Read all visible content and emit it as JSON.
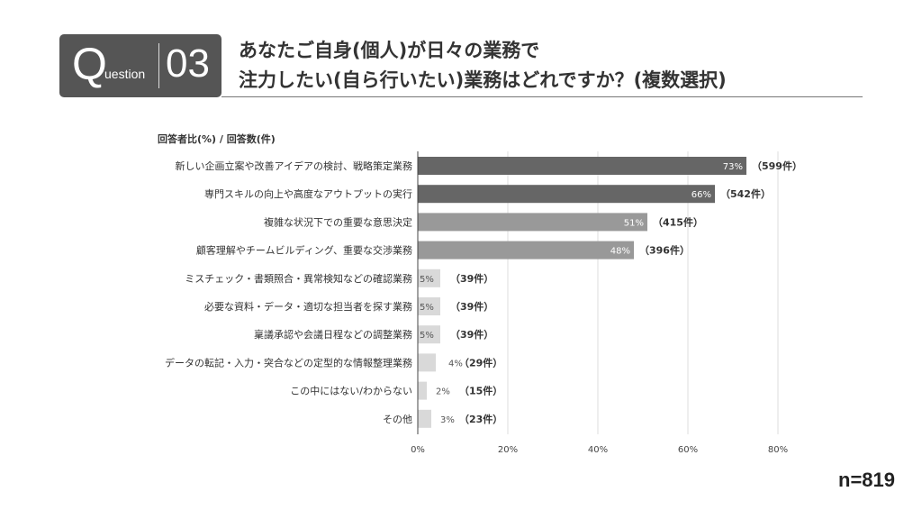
{
  "header": {
    "q_letter": "Q",
    "q_rest": "uestion",
    "q_number": "03",
    "title_line1": "あなたご自身(個人)が日々の業務で",
    "title_line2": "注力したい(自ら行いたい)業務はどれですか？(複数選択)"
  },
  "sample_size": "n=819",
  "chart_data": {
    "type": "bar",
    "orientation": "horizontal",
    "axis_title": "回答者比(%) / 回答数(件)",
    "categories": [
      "新しい企画立案や改善アイデアの検討、戦略策定業務",
      "専門スキルの向上や高度なアウトプットの実行",
      "複雑な状況下での重要な意思決定",
      "顧客理解やチームビルディング、重要な交渉業務",
      "ミスチェック・書類照合・異常検知などの確認業務",
      "必要な資料・データ・適切な担当者を探す業務",
      "稟議承認や会議日程などの調整業務",
      "データの転記・入力・突合などの定型的な情報整理業務",
      "この中にはない/わからない",
      "その他"
    ],
    "values": [
      73,
      66,
      51,
      48,
      5,
      5,
      5,
      4,
      2,
      3
    ],
    "value_labels": [
      "73%",
      "66%",
      "51%",
      "48%",
      "5%",
      "5%",
      "5%",
      "4%",
      "2%",
      "3%"
    ],
    "counts": [
      "（599件）",
      "（542件）",
      "（415件）",
      "（396件）",
      "（39件）",
      "（39件）",
      "（39件）",
      "（29件）",
      "（15件）",
      "（23件）"
    ],
    "xlim": [
      0,
      80
    ],
    "xticks": [
      "0%",
      "20%",
      "40%",
      "60%",
      "80%"
    ],
    "xtick_values": [
      0,
      20,
      40,
      60,
      80
    ],
    "grid": true,
    "colors": {
      "high": "#666666",
      "mid": "#999999",
      "low": "#d9d9d9"
    }
  }
}
